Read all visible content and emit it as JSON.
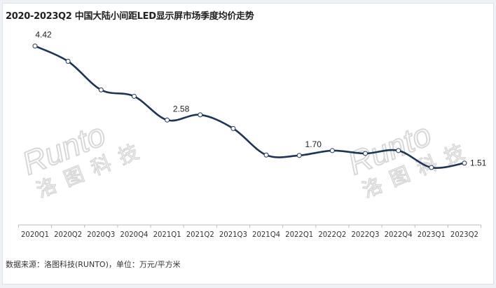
{
  "title": "2020-2023Q2 中国大陆小间距LED显示屏市场季度均价走势",
  "source": "数据来源：洛图科技(RUNTO)，单位：万元/平方米",
  "watermark": {
    "brand": "Runto",
    "name": "洛图科技"
  },
  "colors": {
    "line": "#1d3557",
    "marker_fill": "#ffffff",
    "watermark": "#d8d8d8"
  },
  "chart_data": {
    "type": "line",
    "title": "2020-2023Q2 中国大陆小间距LED显示屏市场季度均价走势",
    "xlabel": "",
    "ylabel": "",
    "unit": "万元/平方米",
    "categories": [
      "2020Q1",
      "2020Q2",
      "2020Q3",
      "2020Q4",
      "2021Q1",
      "2021Q2",
      "2021Q3",
      "2021Q4",
      "2022Q1",
      "2022Q2",
      "2022Q3",
      "2022Q4",
      "2023Q1",
      "2023Q2"
    ],
    "values": [
      4.42,
      4.04,
      3.33,
      3.17,
      2.58,
      2.71,
      2.37,
      1.71,
      1.7,
      1.82,
      1.75,
      1.82,
      1.4,
      1.51
    ],
    "data_labels": {
      "0": "4.42",
      "4": "2.58",
      "8": "1.70",
      "13": "1.51"
    },
    "ylim": [
      0,
      4.6
    ],
    "grid": false,
    "smooth": true,
    "legend": "none"
  }
}
